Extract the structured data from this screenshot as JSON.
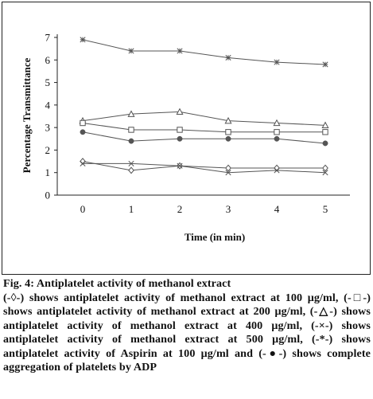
{
  "chart_data": {
    "type": "line",
    "title": "",
    "xlabel": "Time (in min)",
    "ylabel": "Percentage Transmittance",
    "x": [
      0,
      1,
      2,
      3,
      4,
      5
    ],
    "xlim": [
      0,
      5
    ],
    "ylim": [
      0,
      7
    ],
    "yticks": [
      0,
      1,
      2,
      3,
      4,
      5,
      6,
      7
    ],
    "grid": false,
    "legend": "none",
    "series": [
      {
        "marker": "star",
        "color": "#555555",
        "values": [
          6.9,
          6.4,
          6.4,
          6.1,
          5.9,
          5.8
        ]
      },
      {
        "marker": "triangle",
        "color": "#555555",
        "values": [
          3.3,
          3.6,
          3.7,
          3.3,
          3.2,
          3.1
        ]
      },
      {
        "marker": "square",
        "color": "#555555",
        "values": [
          3.2,
          2.9,
          2.9,
          2.8,
          2.8,
          2.8
        ]
      },
      {
        "marker": "circle",
        "color": "#555555",
        "values": [
          2.8,
          2.4,
          2.5,
          2.5,
          2.5,
          2.3
        ]
      },
      {
        "marker": "diamond",
        "color": "#555555",
        "values": [
          1.5,
          1.1,
          1.3,
          1.2,
          1.2,
          1.2
        ]
      },
      {
        "marker": "cross",
        "color": "#555555",
        "values": [
          1.4,
          1.4,
          1.3,
          1.0,
          1.1,
          1.0
        ]
      }
    ]
  },
  "caption": {
    "heading": "Fig. 4: Antiplatelet activity of methanol extract",
    "body": "(-◊-) shows antiplatelet activity of methanol extract at 100 μg/ml, (-□-) shows antiplatelet activity of methanol extract at 200 μg/ml, (-△-) shows antiplatelet activity of methanol extract at 400 μg/ml, (-×-) shows antiplatelet activity of methanol extract at 500 μg/ml, (-*-) shows antiplatelet activity of Aspirin at 100 μg/ml and (-●-) shows complete aggregation of platelets by ADP"
  }
}
